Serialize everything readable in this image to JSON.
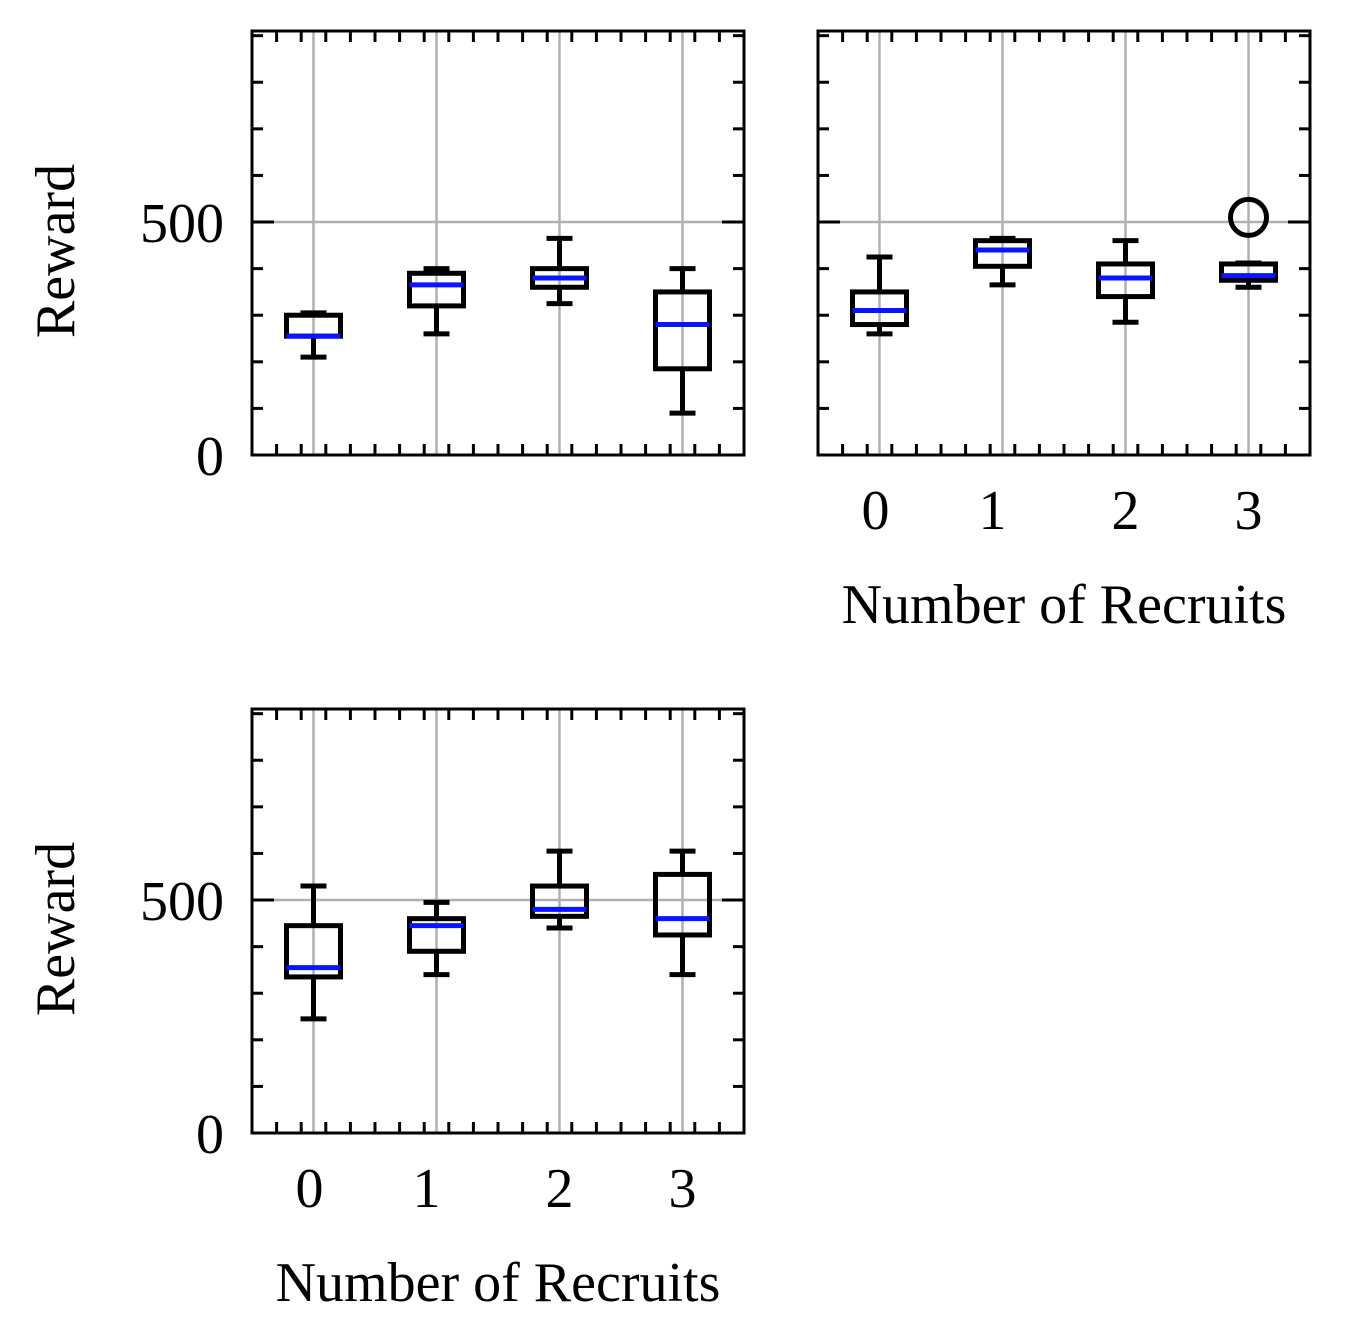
{
  "colors": {
    "box": "#000000",
    "median": "#0a14ff",
    "grid": "#b0b0b0",
    "background": "#ffffff"
  },
  "chart_data": [
    {
      "type": "box",
      "panel": "top-left",
      "xlabel": "",
      "ylabel": "Reward",
      "ylim": [
        0,
        910
      ],
      "xlim": [
        -0.5,
        3.5
      ],
      "grid": true,
      "x_tick_labels_visible": false,
      "categories": [
        "0",
        "1",
        "2",
        "3"
      ],
      "yticks": [
        0,
        500
      ],
      "ytick_labels": [
        "0",
        "500"
      ],
      "boxes": [
        {
          "x": "0",
          "whislo": 210,
          "q1": 255,
          "med": 255,
          "q3": 300,
          "whishi": 305
        },
        {
          "x": "1",
          "whislo": 260,
          "q1": 320,
          "med": 365,
          "q3": 390,
          "whishi": 400
        },
        {
          "x": "2",
          "whislo": 325,
          "q1": 360,
          "med": 380,
          "q3": 400,
          "whishi": 465
        },
        {
          "x": "3",
          "whislo": 90,
          "q1": 185,
          "med": 280,
          "q3": 350,
          "whishi": 400
        }
      ]
    },
    {
      "type": "box",
      "panel": "top-right",
      "xlabel": "Number of Recruits",
      "ylabel": "",
      "ylim": [
        0,
        910
      ],
      "xlim": [
        -0.5,
        3.5
      ],
      "grid": true,
      "y_tick_labels_visible": false,
      "categories": [
        "0",
        "1",
        "2",
        "3"
      ],
      "yticks": [
        0,
        500
      ],
      "ytick_labels": [
        "0",
        "500"
      ],
      "boxes": [
        {
          "x": "0",
          "whislo": 260,
          "q1": 280,
          "med": 310,
          "q3": 350,
          "whishi": 425
        },
        {
          "x": "1",
          "whislo": 365,
          "q1": 405,
          "med": 440,
          "q3": 460,
          "whishi": 465
        },
        {
          "x": "2",
          "whislo": 285,
          "q1": 340,
          "med": 380,
          "q3": 410,
          "whishi": 460
        },
        {
          "x": "3",
          "whislo": 360,
          "q1": 375,
          "med": 385,
          "q3": 410,
          "whishi": 412,
          "fliers": [
            510
          ]
        }
      ]
    },
    {
      "type": "box",
      "panel": "bottom-left",
      "xlabel": "Number of Recruits",
      "ylabel": "Reward",
      "ylim": [
        0,
        910
      ],
      "xlim": [
        -0.5,
        3.5
      ],
      "grid": true,
      "categories": [
        "0",
        "1",
        "2",
        "3"
      ],
      "yticks": [
        0,
        500
      ],
      "ytick_labels": [
        "0",
        "500"
      ],
      "boxes": [
        {
          "x": "0",
          "whislo": 245,
          "q1": 335,
          "med": 355,
          "q3": 445,
          "whishi": 530
        },
        {
          "x": "1",
          "whislo": 340,
          "q1": 390,
          "med": 445,
          "q3": 460,
          "whishi": 495
        },
        {
          "x": "2",
          "whislo": 440,
          "q1": 465,
          "med": 480,
          "q3": 530,
          "whishi": 605
        },
        {
          "x": "3",
          "whislo": 340,
          "q1": 425,
          "med": 460,
          "q3": 555,
          "whishi": 605
        }
      ]
    }
  ]
}
